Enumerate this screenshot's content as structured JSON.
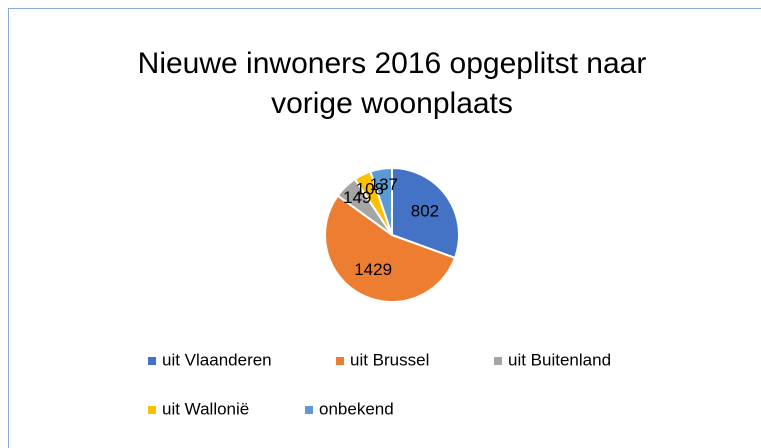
{
  "chart_data": {
    "type": "pie",
    "title": "Nieuwe inwoners 2016 opgeplitst naar vorige woonplaats",
    "categories": [
      "uit Vlaanderen",
      "uit Brussel",
      "uit Buitenland",
      "uit Wallonië",
      "onbekend"
    ],
    "values": [
      802,
      1429,
      149,
      108,
      137
    ],
    "colors": [
      "#4472c4",
      "#ed7d31",
      "#a5a5a5",
      "#ffc000",
      "#5b9bd5"
    ],
    "legend": "bottom"
  }
}
